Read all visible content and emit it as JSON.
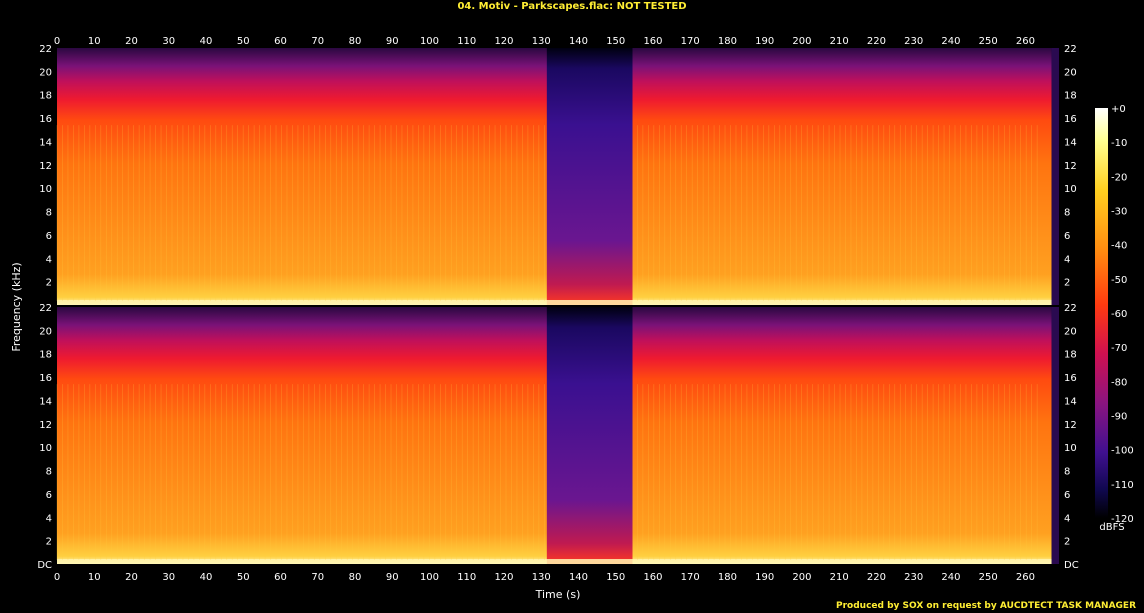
{
  "title": "04. Motiv - Parkscapes.flac: NOT TESTED",
  "footer": "Produced by SOX on request by AUCDTECT TASK MANAGER",
  "colors": {
    "background": "#000000",
    "title_text": "#ffee33",
    "axis_text": "#ffffff"
  },
  "chart_data": {
    "type": "heatmap",
    "title": "04. Motiv - Parkscapes.flac: NOT TESTED",
    "xlabel": "Time (s)",
    "ylabel": "Frequency (kHz)",
    "xlim": [
      0,
      269
    ],
    "ylim": [
      0,
      22
    ],
    "x_ticks": [
      0,
      10,
      20,
      30,
      40,
      50,
      60,
      70,
      80,
      90,
      100,
      110,
      120,
      130,
      140,
      150,
      160,
      170,
      180,
      190,
      200,
      210,
      220,
      230,
      240,
      250,
      260
    ],
    "y_ticks": [
      "DC",
      "2",
      "4",
      "6",
      "8",
      "10",
      "12",
      "14",
      "16",
      "18",
      "20",
      "22"
    ],
    "channels": 2,
    "colorbar": {
      "label": "dBFS",
      "ticks": [
        "+0",
        "-10",
        "-20",
        "-30",
        "-40",
        "-50",
        "-60",
        "-70",
        "-80",
        "-90",
        "-100",
        "-110",
        "-120"
      ],
      "range": [
        -120,
        0
      ]
    },
    "quiet_segments": [
      [
        131.5,
        154.5
      ]
    ],
    "track_end_s": 267
  }
}
